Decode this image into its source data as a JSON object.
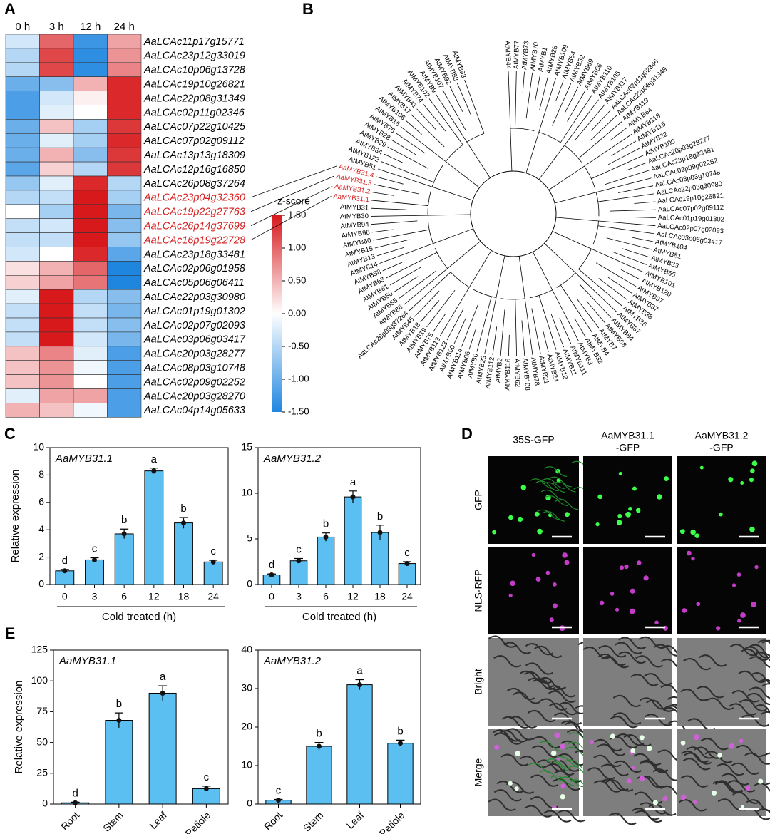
{
  "panel_labels": [
    "A",
    "B",
    "C",
    "D",
    "E"
  ],
  "chart_data": [
    {
      "type": "heatmap",
      "columns": [
        "0 h",
        "3 h",
        "12 h",
        "24 h"
      ],
      "rows": [
        "AaLCAc11p17g15771",
        "AaLCAc23p12g33019",
        "AaLCAc10p06g13728",
        "AaLCAc19p10g26821",
        "AaLCAc22p08g31349",
        "AaLCAc02p11g02346",
        "AaLCAc07p22g10425",
        "AaLCAc07p02g09112",
        "AaLCAc13p13g18309",
        "AaLCAc12p16g16850",
        "AaLCAc26p08g37264",
        "AaLCAc23p04g32360",
        "AaLCAc19p22g27763",
        "AaLCAc26p14g37699",
        "AaLCAc16p19g22728",
        "AaLCAc23p18g33481",
        "AaLCAc02p06g01958",
        "AaLCAc05p06g06411",
        "AaLCAc22p03g30980",
        "AaLCAc01p19g01302",
        "AaLCAc02p07g02093",
        "AaLCAc03p06g03417",
        "AaLCAc20p03g28277",
        "AaLCAc08p03g10748",
        "AaLCAc02p09g02252",
        "AaLCAc20p03g28270",
        "AaLCAc04p14g05633"
      ],
      "row_colors": [
        "#000",
        "#000",
        "#000",
        "#000",
        "#000",
        "#000",
        "#000",
        "#000",
        "#000",
        "#000",
        "#000",
        "#d42020",
        "#d42020",
        "#d42020",
        "#d42020",
        "#000",
        "#000",
        "#000",
        "#000",
        "#000",
        "#000",
        "#000",
        "#000",
        "#000",
        "#000",
        "#000",
        "#000"
      ],
      "values": [
        [
          -0.3,
          1.0,
          -1.3,
          0.6
        ],
        [
          -0.5,
          1.2,
          -1.4,
          0.7
        ],
        [
          -0.5,
          1.2,
          -1.4,
          0.8
        ],
        [
          -1.0,
          -0.8,
          0.5,
          1.4
        ],
        [
          -1.2,
          -0.3,
          0.1,
          1.4
        ],
        [
          -1.2,
          -0.2,
          0.0,
          1.4
        ],
        [
          -1.0,
          0.4,
          -0.6,
          1.3
        ],
        [
          -1.0,
          -0.2,
          -0.6,
          1.4
        ],
        [
          -1.0,
          0.5,
          -0.8,
          1.3
        ],
        [
          -1.1,
          0.3,
          -0.5,
          1.3
        ],
        [
          -0.7,
          -0.2,
          1.4,
          -0.5
        ],
        [
          -0.5,
          -0.4,
          1.5,
          -0.6
        ],
        [
          0.0,
          -0.6,
          1.5,
          -0.9
        ],
        [
          -0.4,
          -0.3,
          1.5,
          -0.8
        ],
        [
          -0.4,
          -0.4,
          1.5,
          -0.7
        ],
        [
          -0.3,
          0.0,
          1.4,
          -1.1
        ],
        [
          0.2,
          0.5,
          1.0,
          -1.5
        ],
        [
          0.3,
          0.6,
          0.9,
          -1.5
        ],
        [
          -0.2,
          1.5,
          -0.5,
          -0.8
        ],
        [
          -0.4,
          1.5,
          -0.4,
          -0.9
        ],
        [
          -0.4,
          1.5,
          -0.4,
          -0.8
        ],
        [
          -0.4,
          1.5,
          -0.3,
          -0.9
        ],
        [
          0.4,
          0.8,
          -0.2,
          -1.2
        ],
        [
          0.4,
          0.7,
          -0.1,
          -1.2
        ],
        [
          0.4,
          0.7,
          0.0,
          -1.2
        ],
        [
          -0.2,
          0.6,
          0.6,
          -1.2
        ],
        [
          0.5,
          0.4,
          -0.1,
          -1.2
        ]
      ],
      "colorbar_title": "z-score",
      "zlim": [
        -1.5,
        1.5
      ],
      "zticks": [
        {
          "value": 1.5,
          "label": "1.50"
        },
        {
          "value": 1,
          "label": "1.00"
        },
        {
          "value": 0.5,
          "label": "0.50"
        },
        {
          "value": 0,
          "label": "0.00"
        },
        {
          "value": -0.5,
          "label": "-0.50"
        },
        {
          "value": -1,
          "label": "-1.00"
        },
        {
          "value": -1.5,
          "label": "-1.50"
        }
      ],
      "low_color": "#1f86e0",
      "mid_color": "#ffffff",
      "high_color": "#d7191c"
    },
    {
      "type": "bar",
      "title": "AaMYB31.1",
      "categories": [
        "0",
        "3",
        "6",
        "12",
        "18",
        "24"
      ],
      "values": [
        1.0,
        1.8,
        3.7,
        8.3,
        4.5,
        1.65
      ],
      "errors": [
        0.1,
        0.15,
        0.35,
        0.2,
        0.4,
        0.12
      ],
      "annotations": [
        "d",
        "c",
        "b",
        "a",
        "b",
        "c"
      ],
      "ylim": [
        0,
        10
      ],
      "yticks": [
        0,
        2,
        4,
        6,
        8,
        10
      ],
      "ylabel": "Relative expression",
      "xlabel": "Cold treated (h)",
      "color": "#5cbff2"
    },
    {
      "type": "bar",
      "title": "AaMYB31.2",
      "categories": [
        "0",
        "3",
        "6",
        "12",
        "18",
        "24"
      ],
      "values": [
        1.05,
        2.6,
        5.2,
        9.6,
        5.7,
        2.3
      ],
      "errors": [
        0.1,
        0.25,
        0.45,
        0.65,
        0.8,
        0.2
      ],
      "annotations": [
        "d",
        "c",
        "b",
        "a",
        "b",
        "c"
      ],
      "ylim": [
        0,
        15
      ],
      "yticks": [
        0,
        5,
        10,
        15
      ],
      "xlabel": "Cold treated (h)",
      "color": "#5cbff2"
    },
    {
      "type": "bar",
      "title": "AaMYB31.1",
      "categories": [
        "Root",
        "Stem",
        "Leaf",
        "Petiole"
      ],
      "values": [
        1,
        68,
        90,
        12.5
      ],
      "errors": [
        0.5,
        6,
        6,
        2
      ],
      "annotations": [
        "d",
        "b",
        "a",
        "c"
      ],
      "ylim": [
        0,
        125
      ],
      "yticks": [
        0,
        25,
        50,
        75,
        100,
        125
      ],
      "ylabel": "Relative  expression",
      "color": "#5cbff2"
    },
    {
      "type": "bar",
      "title": "AaMYB31.2",
      "categories": [
        "Root",
        "Stem",
        "Leaf",
        "Petiole"
      ],
      "values": [
        1,
        15,
        31,
        15.8
      ],
      "errors": [
        0.2,
        1,
        1.3,
        0.8
      ],
      "annotations": [
        "c",
        "b",
        "a",
        "b"
      ],
      "ylim": [
        0,
        40
      ],
      "yticks": [
        0,
        10,
        20,
        30,
        40
      ],
      "color": "#5cbff2"
    }
  ],
  "tree": {
    "color": "#000",
    "tips": [
      {
        "name": "AtMYB44"
      },
      {
        "name": "AtMYB77"
      },
      {
        "name": "AtMYB73"
      },
      {
        "name": "AtMYB70"
      },
      {
        "name": "AtMYB1"
      },
      {
        "name": "AtMYB25"
      },
      {
        "name": "AtMYB109"
      },
      {
        "name": "AtMYB54"
      },
      {
        "name": "AtMYB52"
      },
      {
        "name": "AtMYB69"
      },
      {
        "name": "AtMYB56"
      },
      {
        "name": "AtMYB110"
      },
      {
        "name": "AtMYB105"
      },
      {
        "name": "AtMYB117"
      },
      {
        "name": "AaLCAc02p11g02346"
      },
      {
        "name": "AaLCAc22p08g31349"
      },
      {
        "name": "AtMYB119"
      },
      {
        "name": "AtMYB64"
      },
      {
        "name": "AtMYB118"
      },
      {
        "name": "AtMYB115"
      },
      {
        "name": "AtMYB22"
      },
      {
        "name": "AtMYB100"
      },
      {
        "name": "AaLCAc20p03g28277"
      },
      {
        "name": "AaLCAc23p18g33481"
      },
      {
        "name": "AaLCAc02p09g02252"
      },
      {
        "name": "AaLCAc08p03g10748"
      },
      {
        "name": "AaLCAc22p03g30980"
      },
      {
        "name": "AaLCAc19p10g26821"
      },
      {
        "name": "AaLCAc07p02g09112"
      },
      {
        "name": "AaLCAc01p19g01302"
      },
      {
        "name": "AaLCAc02p07g02093"
      },
      {
        "name": "AaLCAc03p06g03417"
      },
      {
        "name": "AtMYB104"
      },
      {
        "name": "AtMYB81"
      },
      {
        "name": "AtMYB33"
      },
      {
        "name": "AtMYB65"
      },
      {
        "name": "AtMYB101"
      },
      {
        "name": "AtMYB120"
      },
      {
        "name": "AtMYB97"
      },
      {
        "name": "AtMYB37"
      },
      {
        "name": "AtMYB38"
      },
      {
        "name": "AtMYB36"
      },
      {
        "name": "AtMYB87"
      },
      {
        "name": "AtMYB84"
      },
      {
        "name": "AtMYB68"
      },
      {
        "name": "AtMYB7"
      },
      {
        "name": "AtMYB4"
      },
      {
        "name": "AtMYB32"
      },
      {
        "name": "AtMYB3"
      },
      {
        "name": "AtMYB111"
      },
      {
        "name": "AtMYB11"
      },
      {
        "name": "AtMYB12"
      },
      {
        "name": "AtMYB24"
      },
      {
        "name": "AtMYB21"
      },
      {
        "name": "AtMYB78"
      },
      {
        "name": "AtMYB108"
      },
      {
        "name": "AtMYB62"
      },
      {
        "name": "AtMYB116"
      },
      {
        "name": "AtMYB2"
      },
      {
        "name": "AtMYB112"
      },
      {
        "name": "AtMYB23"
      },
      {
        "name": "AtMYB0"
      },
      {
        "name": "AtMYB66"
      },
      {
        "name": "AtMYB114"
      },
      {
        "name": "AtMYB90"
      },
      {
        "name": "AtMYB123"
      },
      {
        "name": "AtMYB113"
      },
      {
        "name": "AtMYB75"
      },
      {
        "name": "AtMYB19"
      },
      {
        "name": "AtMYB18"
      },
      {
        "name": "AtMYB45"
      },
      {
        "name": "AaLCAc26p08g37264"
      },
      {
        "name": "AtMYB86"
      },
      {
        "name": "AtMYB55"
      },
      {
        "name": "AtMYB50"
      },
      {
        "name": "AtMYB61"
      },
      {
        "name": "AtMYB63"
      },
      {
        "name": "AtMYB58"
      },
      {
        "name": "AtMYB14"
      },
      {
        "name": "AtMYB13"
      },
      {
        "name": "AtMYB15"
      },
      {
        "name": "AtMYB60"
      },
      {
        "name": "AtMYB96"
      },
      {
        "name": "AtMYB94"
      },
      {
        "name": "AtMYB30"
      },
      {
        "name": "AtMYB31"
      },
      {
        "name": "AaMYB31.1",
        "color": "#d42020"
      },
      {
        "name": "AaMYB31.2",
        "color": "#d42020"
      },
      {
        "name": "AaMYB31.3",
        "color": "#d42020"
      },
      {
        "name": "AaMYB31.4",
        "color": "#d42020"
      },
      {
        "name": "AtMYB51"
      },
      {
        "name": "AtMYB122"
      },
      {
        "name": "AtMYB34"
      },
      {
        "name": "AtMYB29"
      },
      {
        "name": "AtMYB28"
      },
      {
        "name": "AtMYB76"
      },
      {
        "name": "AtMYB16"
      },
      {
        "name": "AtMYB106"
      },
      {
        "name": "AtMYB17"
      },
      {
        "name": "AtMYB41"
      },
      {
        "name": "AtMYB74"
      },
      {
        "name": "AtMYB102"
      },
      {
        "name": "AtMYB9"
      },
      {
        "name": "AtMYB107"
      },
      {
        "name": "AtMYB92"
      },
      {
        "name": "AtMYB53"
      },
      {
        "name": "AtMYB93"
      }
    ]
  },
  "microscopy": {
    "columns": [
      [
        "35S-GFP"
      ],
      [
        "AaMYB31.1",
        "-GFP"
      ],
      [
        "AaMYB31.2",
        "-GFP"
      ]
    ],
    "rows": [
      "GFP",
      "NLS-RFP",
      "Bright",
      "Merge"
    ]
  }
}
